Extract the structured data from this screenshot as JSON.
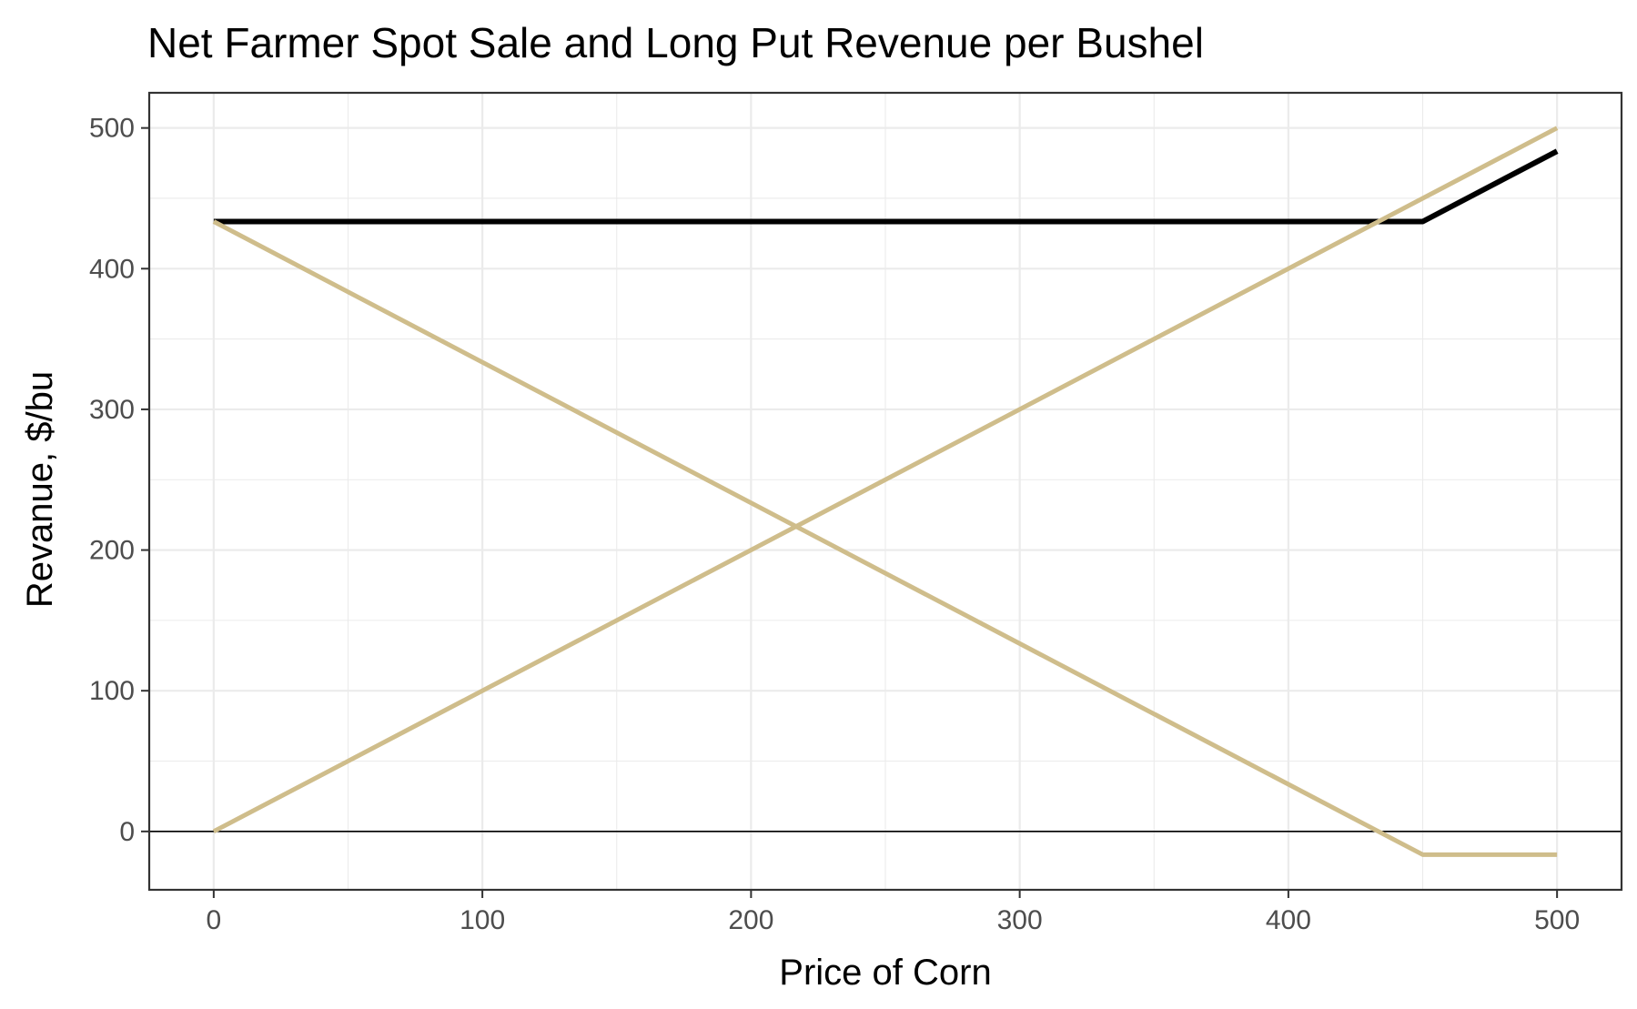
{
  "chart_data": {
    "type": "line",
    "title": "Net Farmer Spot Sale and Long Put Revenue per Bushel",
    "xlabel": "Price of Corn",
    "ylabel": "Revanue, $/bu",
    "xlim": [
      -24,
      524
    ],
    "ylim": [
      -41.5,
      525
    ],
    "x_ticks": [
      0,
      100,
      200,
      300,
      400,
      500
    ],
    "y_ticks": [
      0,
      100,
      200,
      300,
      400,
      500
    ],
    "x_tick_labels": [
      "0",
      "100",
      "200",
      "300",
      "400",
      "500"
    ],
    "y_tick_labels": [
      "0",
      "100",
      "200",
      "300",
      "400",
      "500"
    ],
    "grid": true,
    "reference_line_y": 0,
    "series": [
      {
        "color": "#000000",
        "points": [
          [
            0,
            433.5
          ],
          [
            450,
            433.5
          ],
          [
            500,
            483.5
          ]
        ]
      },
      {
        "color": "#cfbd8b",
        "points": [
          [
            0,
            0
          ],
          [
            500,
            500
          ]
        ]
      },
      {
        "color": "#cfbd8b",
        "points": [
          [
            0,
            433.5
          ],
          [
            450,
            -16.5
          ],
          [
            500,
            -16.5
          ]
        ]
      }
    ]
  }
}
